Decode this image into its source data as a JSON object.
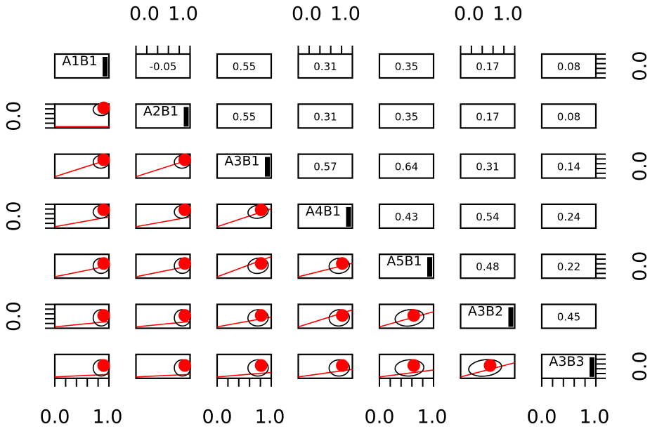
{
  "chart_data": {
    "type": "scatter-matrix",
    "title": "",
    "variables": [
      "A1B1",
      "A2B1",
      "A3B1",
      "A4B1",
      "A5B1",
      "A3B2",
      "A3B3"
    ],
    "axis_tick_labels": [
      "0.0",
      "1.0"
    ],
    "axis_range": [
      0,
      1
    ],
    "correlations": [
      [
        null,
        -0.05,
        0.55,
        0.31,
        0.35,
        0.17,
        0.08
      ],
      [
        -0.05,
        null,
        0.55,
        0.31,
        0.35,
        0.17,
        0.08
      ],
      [
        0.55,
        0.55,
        null,
        0.57,
        0.64,
        0.31,
        0.14
      ],
      [
        0.31,
        0.31,
        0.57,
        null,
        0.43,
        0.54,
        0.24
      ],
      [
        0.35,
        0.35,
        0.64,
        0.43,
        null,
        0.48,
        0.22
      ],
      [
        0.17,
        0.17,
        0.31,
        0.54,
        0.48,
        null,
        0.45
      ],
      [
        0.08,
        0.08,
        0.14,
        0.24,
        0.22,
        0.45,
        null
      ]
    ],
    "correlation_labels": [
      [
        "",
        "-0.05",
        "0.55",
        "0.31",
        "0.35",
        "0.17",
        "0.08"
      ],
      [
        "",
        "",
        "0.55",
        "0.31",
        "0.35",
        "0.17",
        "0.08"
      ],
      [
        "",
        "",
        "",
        "0.57",
        "0.64",
        "0.31",
        "0.14"
      ],
      [
        "",
        "",
        "",
        "",
        "0.43",
        "0.54",
        "0.24"
      ],
      [
        "",
        "",
        "",
        "",
        "",
        "0.48",
        "0.22"
      ],
      [
        "",
        "",
        "",
        "",
        "",
        "",
        "0.45"
      ],
      [
        "",
        "",
        "",
        "",
        "",
        "",
        ""
      ]
    ],
    "variable_means": [
      0.95,
      0.95,
      0.85,
      0.85,
      0.65,
      0.55,
      0.55
    ],
    "colors": {
      "fit_line": "#ff0000",
      "ellipse_center": "#ff0000",
      "frame": "#000000"
    }
  }
}
